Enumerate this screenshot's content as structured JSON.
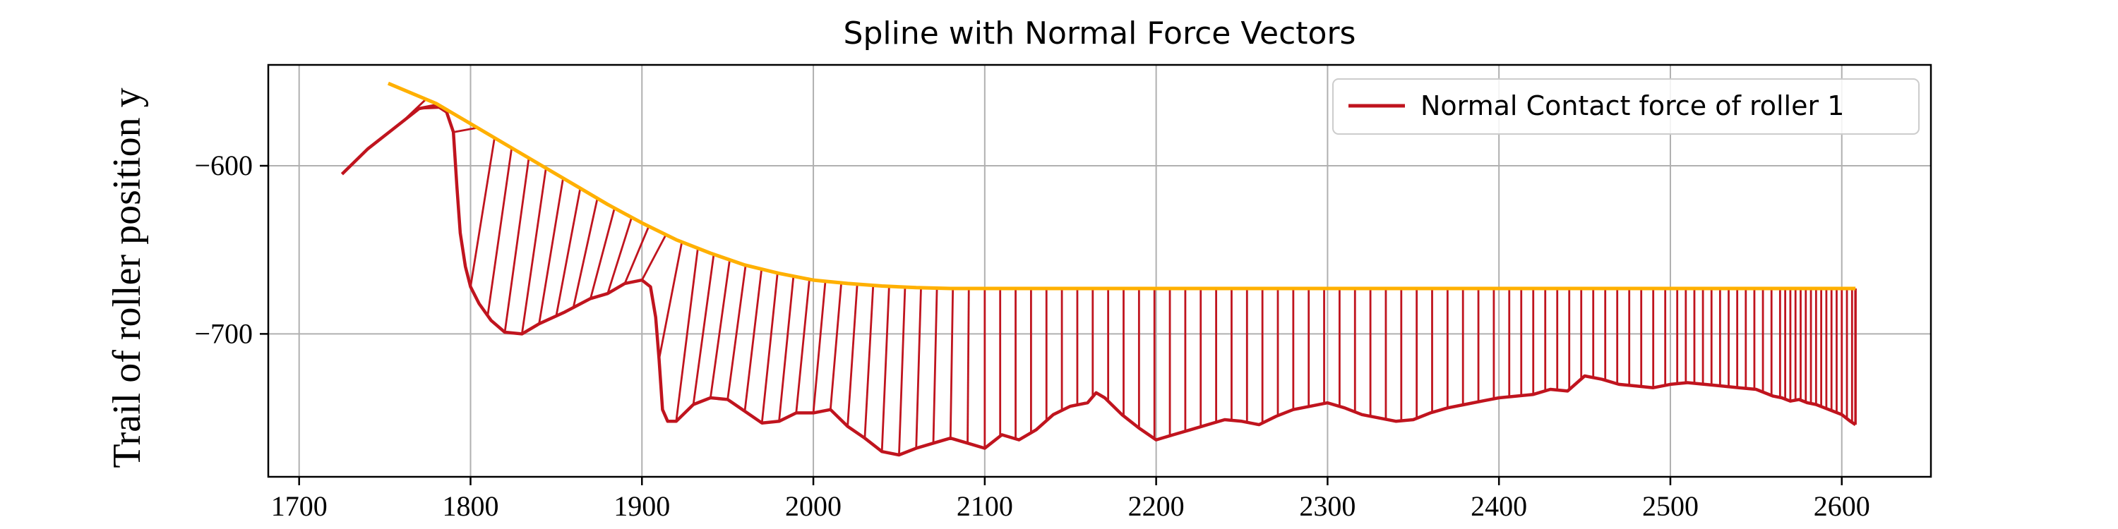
{
  "chart_data": {
    "type": "line",
    "title": "Spline with Normal Force Vectors",
    "xlabel": "",
    "ylabel": "Trail of roller position y",
    "xlim": [
      1682,
      2652
    ],
    "ylim": [
      -785,
      -540
    ],
    "xticks": [
      1700,
      1800,
      1900,
      2000,
      2100,
      2200,
      2300,
      2400,
      2500,
      2600
    ],
    "yticks": [
      -600,
      -700
    ],
    "grid": true,
    "legend_position": "top-right",
    "colors": {
      "spline": "#FFB000",
      "force": "#C0141E"
    },
    "spline": {
      "x": [
        1752,
        1780,
        1800,
        1820,
        1840,
        1860,
        1880,
        1900,
        1920,
        1940,
        1960,
        1980,
        2000,
        2020,
        2040,
        2060,
        2080,
        2100,
        2150,
        2200,
        2250,
        2300,
        2350,
        2400,
        2450,
        2500,
        2550,
        2608
      ],
      "y": [
        -551,
        -563,
        -575,
        -587,
        -599,
        -611,
        -623,
        -634,
        -644,
        -652,
        -659,
        -664,
        -668,
        -670,
        -671.5,
        -672.5,
        -673,
        -673,
        -673,
        -673,
        -673,
        -673,
        -673,
        -673,
        -673,
        -673,
        -673,
        -673
      ]
    },
    "series": [
      {
        "name": "Normal Contact force of roller 1",
        "x": [
          1725,
          1740,
          1755,
          1770,
          1780,
          1786,
          1790,
          1792,
          1794,
          1797,
          1800,
          1805,
          1812,
          1820,
          1830,
          1840,
          1855,
          1870,
          1880,
          1890,
          1900,
          1905,
          1908,
          1910,
          1912,
          1915,
          1920,
          1930,
          1940,
          1950,
          1960,
          1970,
          1980,
          1990,
          2000,
          2010,
          2020,
          2030,
          2040,
          2050,
          2060,
          2070,
          2080,
          2090,
          2100,
          2110,
          2120,
          2130,
          2140,
          2150,
          2160,
          2165,
          2170,
          2180,
          2190,
          2200,
          2210,
          2220,
          2230,
          2240,
          2250,
          2260,
          2270,
          2280,
          2290,
          2300,
          2310,
          2320,
          2330,
          2340,
          2350,
          2360,
          2370,
          2380,
          2390,
          2400,
          2410,
          2420,
          2430,
          2440,
          2450,
          2460,
          2470,
          2480,
          2490,
          2500,
          2510,
          2520,
          2530,
          2540,
          2550,
          2560,
          2565,
          2570,
          2575,
          2580,
          2585,
          2590,
          2595,
          2600,
          2605,
          2608
        ],
        "y": [
          -605,
          -590,
          -578,
          -566,
          -564,
          -568,
          -580,
          -612,
          -640,
          -660,
          -672,
          -682,
          -692,
          -699,
          -700,
          -694,
          -687,
          -679,
          -676,
          -670,
          -668,
          -672,
          -690,
          -715,
          -745,
          -752,
          -752,
          -742,
          -738,
          -739,
          -746,
          -753,
          -752,
          -747,
          -747,
          -745,
          -755,
          -762,
          -770,
          -772,
          -768,
          -765,
          -762,
          -765,
          -768,
          -760,
          -763,
          -757,
          -748,
          -743,
          -741,
          -735,
          -738,
          -748,
          -756,
          -763,
          -760,
          -757,
          -754,
          -751,
          -752,
          -754,
          -749,
          -745,
          -743,
          -741,
          -744,
          -748,
          -750,
          -752,
          -751,
          -747,
          -744,
          -742,
          -740,
          -738,
          -737,
          -736,
          -733,
          -734,
          -725,
          -727,
          -730,
          -731,
          -732,
          -730,
          -729,
          -730,
          -731,
          -732,
          -733,
          -737,
          -738,
          -740,
          -739,
          -741,
          -742,
          -744,
          -746,
          -748,
          -752,
          -754
        ]
      }
    ]
  }
}
